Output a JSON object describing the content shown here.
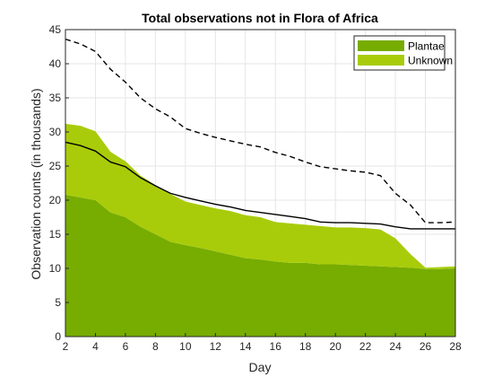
{
  "chart_data": {
    "type": "area",
    "title": "Total observations not in Flora of Africa",
    "xlabel": "Day",
    "ylabel": "Observation counts (in thousands)",
    "xlim": [
      2,
      28
    ],
    "ylim": [
      0,
      45
    ],
    "xticks": [
      2,
      4,
      6,
      8,
      10,
      12,
      14,
      16,
      18,
      20,
      22,
      24,
      26,
      28
    ],
    "yticks": [
      0,
      5,
      10,
      15,
      20,
      25,
      30,
      35,
      40,
      45
    ],
    "grid": true,
    "legend_position": "top-right",
    "x": [
      2,
      3,
      4,
      5,
      6,
      7,
      8,
      9,
      10,
      11,
      12,
      13,
      14,
      15,
      16,
      17,
      18,
      19,
      20,
      21,
      22,
      23,
      24,
      25,
      26,
      27,
      28
    ],
    "series": [
      {
        "name": "Plantae",
        "color": "#77ac00",
        "values": [
          20.8,
          20.4,
          20.0,
          18.2,
          17.5,
          16.1,
          15.0,
          13.9,
          13.4,
          13.0,
          12.5,
          12.0,
          11.5,
          11.3,
          11.0,
          10.8,
          10.8,
          10.6,
          10.6,
          10.5,
          10.4,
          10.3,
          10.2,
          10.1,
          9.9,
          9.9,
          10.0
        ]
      },
      {
        "name": "Unknown",
        "color": "#a8cc0a",
        "values": [
          10.4,
          10.5,
          10.1,
          8.9,
          8.2,
          7.5,
          7.2,
          7.0,
          6.4,
          6.3,
          6.3,
          6.4,
          6.3,
          6.2,
          5.8,
          5.8,
          5.6,
          5.6,
          5.4,
          5.5,
          5.5,
          5.4,
          4.2,
          2.0,
          0.2,
          0.3,
          0.3
        ]
      }
    ],
    "lines": [
      {
        "style": "solid",
        "color": "#000000",
        "values": [
          28.5,
          28.0,
          27.2,
          25.6,
          24.9,
          23.3,
          22.1,
          21.0,
          20.4,
          19.9,
          19.4,
          19.0,
          18.5,
          18.2,
          17.9,
          17.6,
          17.3,
          16.8,
          16.7,
          16.7,
          16.6,
          16.5,
          16.1,
          15.8,
          15.8,
          15.8,
          15.8
        ]
      },
      {
        "style": "dashed",
        "color": "#000000",
        "values": [
          43.6,
          42.9,
          41.8,
          39.2,
          37.3,
          35.0,
          33.4,
          32.2,
          30.5,
          29.8,
          29.2,
          28.7,
          28.2,
          27.8,
          27.0,
          26.4,
          25.6,
          24.9,
          24.6,
          24.3,
          24.1,
          23.6,
          21.0,
          19.3,
          16.7,
          16.7,
          16.8
        ]
      }
    ]
  }
}
